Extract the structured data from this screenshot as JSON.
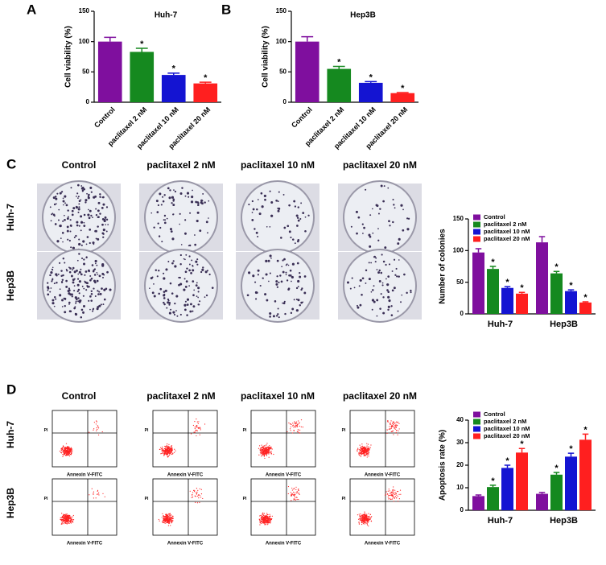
{
  "panels": {
    "letters": [
      "A",
      "B",
      "C",
      "D"
    ],
    "columns": [
      "Control",
      "paclitaxel 2 nM",
      "paclitaxel 10 nM",
      "paclitaxel 20 nM"
    ],
    "rows": [
      "Huh-7",
      "Hep3B"
    ],
    "flow_x_label": "Annexin V-FITC",
    "flow_y_label": "PI"
  },
  "chart_data": [
    {
      "type": "bar",
      "title": "Huh-7",
      "ylabel": "Cell viability (%)",
      "categories": [
        "Control",
        "paclitaxel 2 nM",
        "paclitaxel 10 nM",
        "paclitaxel 20 nM"
      ],
      "values": [
        100,
        83,
        45,
        31
      ],
      "errors": [
        7,
        6,
        3,
        2
      ],
      "significance": [
        null,
        "*",
        "*",
        "*"
      ],
      "colors": [
        "#7f0f9e",
        "#15891f",
        "#1414d2",
        "#ff1f1f"
      ],
      "ylim": [
        0,
        150
      ],
      "yticks": [
        0,
        50,
        100,
        150
      ]
    },
    {
      "type": "bar",
      "title": "Hep3B",
      "ylabel": "Cell viability (%)",
      "categories": [
        "Control",
        "paclitaxel 2 nM",
        "paclitaxel 10 nM",
        "paclitaxel 20 nM"
      ],
      "values": [
        100,
        55,
        32,
        15
      ],
      "errors": [
        8,
        4,
        2,
        1
      ],
      "significance": [
        null,
        "*",
        "*",
        "*"
      ],
      "colors": [
        "#7f0f9e",
        "#15891f",
        "#1414d2",
        "#ff1f1f"
      ],
      "ylim": [
        0,
        150
      ],
      "yticks": [
        0,
        50,
        100,
        150
      ]
    },
    {
      "type": "bar",
      "ylabel": "Number of colonies",
      "legend": "upper-left",
      "categories": [
        "Huh-7",
        "Hep3B"
      ],
      "series": [
        {
          "name": "Control",
          "color": "#7f0f9e",
          "values": [
            97,
            113
          ],
          "errors": [
            6,
            9
          ],
          "significance": [
            null,
            null
          ]
        },
        {
          "name": "paclitaxel 2 nM",
          "color": "#15891f",
          "values": [
            71,
            64
          ],
          "errors": [
            4,
            3
          ],
          "significance": [
            "*",
            "*"
          ]
        },
        {
          "name": "paclitaxel 10 nM",
          "color": "#1414d2",
          "values": [
            41,
            36
          ],
          "errors": [
            2,
            2
          ],
          "significance": [
            "*",
            "*"
          ]
        },
        {
          "name": "paclitaxel 20 nM",
          "color": "#ff1f1f",
          "values": [
            32,
            18
          ],
          "errors": [
            2,
            1
          ],
          "significance": [
            "*",
            "*"
          ]
        }
      ],
      "ylim": [
        0,
        150
      ],
      "yticks": [
        0,
        50,
        100,
        150
      ]
    },
    {
      "type": "bar",
      "ylabel": "Apoptosis rate (%)",
      "legend": "upper-left",
      "categories": [
        "Huh-7",
        "Hep3B"
      ],
      "series": [
        {
          "name": "Control",
          "color": "#7f0f9e",
          "values": [
            6.3,
            7.3
          ],
          "errors": [
            0.5,
            0.6
          ],
          "significance": [
            null,
            null
          ]
        },
        {
          "name": "paclitaxel 2 nM",
          "color": "#15891f",
          "values": [
            10.3,
            15.8
          ],
          "errors": [
            0.8,
            1
          ],
          "significance": [
            "*",
            "*"
          ]
        },
        {
          "name": "paclitaxel 10 nM",
          "color": "#1414d2",
          "values": [
            18.8,
            23.8
          ],
          "errors": [
            1.2,
            1.5
          ],
          "significance": [
            "*",
            "*"
          ]
        },
        {
          "name": "paclitaxel 20 nM",
          "color": "#ff1f1f",
          "values": [
            25.6,
            31.3
          ],
          "errors": [
            1.8,
            2.5
          ],
          "significance": [
            "*",
            "*"
          ]
        }
      ],
      "ylim": [
        0,
        40
      ],
      "yticks": [
        0,
        10,
        20,
        30,
        40
      ]
    }
  ]
}
